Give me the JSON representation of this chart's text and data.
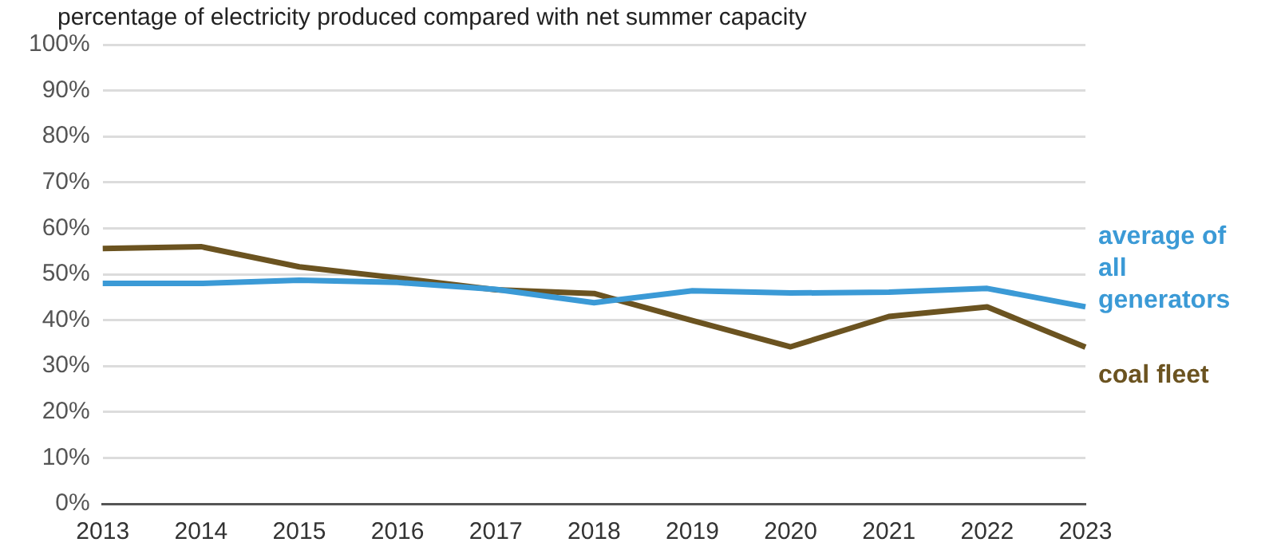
{
  "chart_data": {
    "type": "line",
    "title": "percentage of electricity produced compared with net summer capacity",
    "categories": [
      "2013",
      "2014",
      "2015",
      "2016",
      "2017",
      "2018",
      "2019",
      "2020",
      "2021",
      "2022",
      "2023"
    ],
    "series": [
      {
        "name": "average of all generators",
        "color": "#3b9ad6",
        "values": [
          48,
          48,
          48.7,
          48.2,
          46.7,
          43.8,
          46.4,
          45.9,
          46.1,
          46.9,
          42.9
        ]
      },
      {
        "name": "coal fleet",
        "color": "#6b5320",
        "values": [
          55.6,
          56,
          51.6,
          49.2,
          46.6,
          45.8,
          39.9,
          34.2,
          40.8,
          42.9,
          34.1
        ]
      }
    ],
    "ylim": [
      0,
      100
    ],
    "yticks": [
      {
        "value": 0,
        "label": "0%"
      },
      {
        "value": 10,
        "label": "10%"
      },
      {
        "value": 20,
        "label": "20%"
      },
      {
        "value": 30,
        "label": "30%"
      },
      {
        "value": 40,
        "label": "40%"
      },
      {
        "value": 50,
        "label": "50%"
      },
      {
        "value": 60,
        "label": "60%"
      },
      {
        "value": 70,
        "label": "70%"
      },
      {
        "value": 80,
        "label": "80%"
      },
      {
        "value": 90,
        "label": "90%"
      },
      {
        "value": 100,
        "label": "100%"
      }
    ],
    "grid": "y",
    "legend": false,
    "marker": "none",
    "line_style": "solid"
  }
}
